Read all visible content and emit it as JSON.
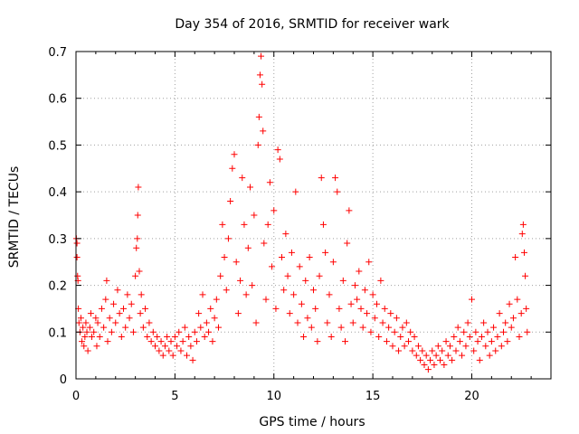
{
  "chart_data": {
    "type": "scatter",
    "title": "Day 354 of 2016, SRMTID for receiver wark",
    "xlabel": "GPS time / hours",
    "ylabel": "SRMTID / TECUs",
    "xlim": [
      0,
      24
    ],
    "ylim": [
      0,
      0.7
    ],
    "xticks": [
      0,
      5,
      10,
      15,
      20
    ],
    "yticks": [
      0,
      0.1,
      0.2,
      0.3,
      0.4,
      0.5,
      0.6,
      0.7
    ],
    "xtick_labels": [
      "0",
      "5",
      "10",
      "15",
      "20"
    ],
    "ytick_labels": [
      "0",
      "0.1",
      "0.2",
      "0.3",
      "0.4",
      "0.5",
      "0.6",
      "0.7"
    ],
    "grid": true,
    "marker": "+",
    "color": "#ff0000",
    "series": [
      {
        "name": "SRMTID",
        "points": [
          [
            0.02,
            0.3
          ],
          [
            0.05,
            0.29
          ],
          [
            0.05,
            0.26
          ],
          [
            0.08,
            0.22
          ],
          [
            0.1,
            0.21
          ],
          [
            0.12,
            0.15
          ],
          [
            0.15,
            0.12
          ],
          [
            0.2,
            0.1
          ],
          [
            0.25,
            0.13
          ],
          [
            0.3,
            0.08
          ],
          [
            0.35,
            0.11
          ],
          [
            0.4,
            0.07
          ],
          [
            0.45,
            0.09
          ],
          [
            0.5,
            0.12
          ],
          [
            0.55,
            0.1
          ],
          [
            0.6,
            0.06
          ],
          [
            0.7,
            0.11
          ],
          [
            0.75,
            0.14
          ],
          [
            0.8,
            0.09
          ],
          [
            0.9,
            0.1
          ],
          [
            1.0,
            0.13
          ],
          [
            1.05,
            0.07
          ],
          [
            1.1,
            0.12
          ],
          [
            1.2,
            0.09
          ],
          [
            1.3,
            0.15
          ],
          [
            1.4,
            0.11
          ],
          [
            1.5,
            0.17
          ],
          [
            1.55,
            0.21
          ],
          [
            1.6,
            0.08
          ],
          [
            1.7,
            0.13
          ],
          [
            1.8,
            0.1
          ],
          [
            1.9,
            0.16
          ],
          [
            2.0,
            0.12
          ],
          [
            2.1,
            0.19
          ],
          [
            2.2,
            0.14
          ],
          [
            2.3,
            0.09
          ],
          [
            2.4,
            0.15
          ],
          [
            2.5,
            0.11
          ],
          [
            2.6,
            0.18
          ],
          [
            2.7,
            0.13
          ],
          [
            2.8,
            0.16
          ],
          [
            2.9,
            0.1
          ],
          [
            3.0,
            0.22
          ],
          [
            3.05,
            0.28
          ],
          [
            3.1,
            0.3
          ],
          [
            3.12,
            0.35
          ],
          [
            3.15,
            0.41
          ],
          [
            3.2,
            0.23
          ],
          [
            3.25,
            0.14
          ],
          [
            3.3,
            0.18
          ],
          [
            3.4,
            0.11
          ],
          [
            3.5,
            0.15
          ],
          [
            3.6,
            0.09
          ],
          [
            3.7,
            0.12
          ],
          [
            3.8,
            0.08
          ],
          [
            3.9,
            0.1
          ],
          [
            4.0,
            0.07
          ],
          [
            4.1,
            0.09
          ],
          [
            4.2,
            0.06
          ],
          [
            4.3,
            0.08
          ],
          [
            4.4,
            0.05
          ],
          [
            4.5,
            0.07
          ],
          [
            4.6,
            0.09
          ],
          [
            4.7,
            0.06
          ],
          [
            4.8,
            0.08
          ],
          [
            4.9,
            0.05
          ],
          [
            5.0,
            0.09
          ],
          [
            5.1,
            0.07
          ],
          [
            5.2,
            0.1
          ],
          [
            5.3,
            0.06
          ],
          [
            5.4,
            0.08
          ],
          [
            5.5,
            0.11
          ],
          [
            5.6,
            0.05
          ],
          [
            5.7,
            0.09
          ],
          [
            5.8,
            0.07
          ],
          [
            5.9,
            0.04
          ],
          [
            6.0,
            0.1
          ],
          [
            6.1,
            0.08
          ],
          [
            6.2,
            0.14
          ],
          [
            6.3,
            0.11
          ],
          [
            6.4,
            0.18
          ],
          [
            6.5,
            0.09
          ],
          [
            6.6,
            0.12
          ],
          [
            6.7,
            0.1
          ],
          [
            6.8,
            0.15
          ],
          [
            6.9,
            0.08
          ],
          [
            7.0,
            0.13
          ],
          [
            7.1,
            0.17
          ],
          [
            7.2,
            0.11
          ],
          [
            7.3,
            0.22
          ],
          [
            7.4,
            0.33
          ],
          [
            7.5,
            0.26
          ],
          [
            7.6,
            0.19
          ],
          [
            7.7,
            0.3
          ],
          [
            7.8,
            0.38
          ],
          [
            7.9,
            0.45
          ],
          [
            8.0,
            0.48
          ],
          [
            8.1,
            0.25
          ],
          [
            8.2,
            0.14
          ],
          [
            8.3,
            0.21
          ],
          [
            8.4,
            0.43
          ],
          [
            8.5,
            0.33
          ],
          [
            8.6,
            0.18
          ],
          [
            8.7,
            0.28
          ],
          [
            8.8,
            0.41
          ],
          [
            8.9,
            0.2
          ],
          [
            9.0,
            0.35
          ],
          [
            9.1,
            0.12
          ],
          [
            9.2,
            0.5
          ],
          [
            9.25,
            0.56
          ],
          [
            9.3,
            0.65
          ],
          [
            9.35,
            0.69
          ],
          [
            9.4,
            0.63
          ],
          [
            9.45,
            0.53
          ],
          [
            9.5,
            0.29
          ],
          [
            9.6,
            0.17
          ],
          [
            9.7,
            0.33
          ],
          [
            9.8,
            0.42
          ],
          [
            9.9,
            0.24
          ],
          [
            10.0,
            0.36
          ],
          [
            10.1,
            0.15
          ],
          [
            10.2,
            0.49
          ],
          [
            10.3,
            0.47
          ],
          [
            10.4,
            0.26
          ],
          [
            10.5,
            0.19
          ],
          [
            10.6,
            0.31
          ],
          [
            10.7,
            0.22
          ],
          [
            10.8,
            0.14
          ],
          [
            10.9,
            0.27
          ],
          [
            11.0,
            0.18
          ],
          [
            11.1,
            0.4
          ],
          [
            11.2,
            0.12
          ],
          [
            11.3,
            0.24
          ],
          [
            11.4,
            0.16
          ],
          [
            11.5,
            0.09
          ],
          [
            11.6,
            0.21
          ],
          [
            11.7,
            0.13
          ],
          [
            11.8,
            0.26
          ],
          [
            11.9,
            0.11
          ],
          [
            12.0,
            0.19
          ],
          [
            12.1,
            0.15
          ],
          [
            12.2,
            0.08
          ],
          [
            12.3,
            0.22
          ],
          [
            12.4,
            0.43
          ],
          [
            12.5,
            0.33
          ],
          [
            12.6,
            0.27
          ],
          [
            12.7,
            0.12
          ],
          [
            12.8,
            0.18
          ],
          [
            12.9,
            0.09
          ],
          [
            13.0,
            0.25
          ],
          [
            13.1,
            0.43
          ],
          [
            13.2,
            0.4
          ],
          [
            13.3,
            0.15
          ],
          [
            13.4,
            0.11
          ],
          [
            13.5,
            0.21
          ],
          [
            13.6,
            0.08
          ],
          [
            13.7,
            0.29
          ],
          [
            13.8,
            0.36
          ],
          [
            13.9,
            0.16
          ],
          [
            14.0,
            0.12
          ],
          [
            14.1,
            0.2
          ],
          [
            14.2,
            0.17
          ],
          [
            14.3,
            0.23
          ],
          [
            14.4,
            0.15
          ],
          [
            14.5,
            0.11
          ],
          [
            14.6,
            0.19
          ],
          [
            14.7,
            0.14
          ],
          [
            14.8,
            0.25
          ],
          [
            14.9,
            0.1
          ],
          [
            15.0,
            0.18
          ],
          [
            15.1,
            0.13
          ],
          [
            15.2,
            0.16
          ],
          [
            15.3,
            0.09
          ],
          [
            15.4,
            0.21
          ],
          [
            15.5,
            0.12
          ],
          [
            15.6,
            0.15
          ],
          [
            15.7,
            0.08
          ],
          [
            15.8,
            0.11
          ],
          [
            15.9,
            0.14
          ],
          [
            16.0,
            0.07
          ],
          [
            16.1,
            0.1
          ],
          [
            16.2,
            0.13
          ],
          [
            16.3,
            0.06
          ],
          [
            16.4,
            0.09
          ],
          [
            16.5,
            0.11
          ],
          [
            16.6,
            0.07
          ],
          [
            16.7,
            0.12
          ],
          [
            16.8,
            0.08
          ],
          [
            16.9,
            0.1
          ],
          [
            17.0,
            0.06
          ],
          [
            17.1,
            0.09
          ],
          [
            17.2,
            0.05
          ],
          [
            17.3,
            0.07
          ],
          [
            17.4,
            0.04
          ],
          [
            17.5,
            0.06
          ],
          [
            17.6,
            0.03
          ],
          [
            17.7,
            0.05
          ],
          [
            17.8,
            0.02
          ],
          [
            17.9,
            0.04
          ],
          [
            18.0,
            0.06
          ],
          [
            18.1,
            0.03
          ],
          [
            18.2,
            0.05
          ],
          [
            18.3,
            0.07
          ],
          [
            18.4,
            0.04
          ],
          [
            18.5,
            0.06
          ],
          [
            18.6,
            0.03
          ],
          [
            18.7,
            0.08
          ],
          [
            18.8,
            0.05
          ],
          [
            18.9,
            0.07
          ],
          [
            19.0,
            0.04
          ],
          [
            19.1,
            0.09
          ],
          [
            19.2,
            0.06
          ],
          [
            19.3,
            0.11
          ],
          [
            19.4,
            0.08
          ],
          [
            19.5,
            0.05
          ],
          [
            19.6,
            0.1
          ],
          [
            19.7,
            0.07
          ],
          [
            19.8,
            0.12
          ],
          [
            19.9,
            0.09
          ],
          [
            20.0,
            0.17
          ],
          [
            20.1,
            0.06
          ],
          [
            20.2,
            0.1
          ],
          [
            20.3,
            0.08
          ],
          [
            20.4,
            0.04
          ],
          [
            20.5,
            0.09
          ],
          [
            20.6,
            0.12
          ],
          [
            20.7,
            0.07
          ],
          [
            20.8,
            0.1
          ],
          [
            20.9,
            0.05
          ],
          [
            21.0,
            0.08
          ],
          [
            21.1,
            0.11
          ],
          [
            21.2,
            0.06
          ],
          [
            21.3,
            0.09
          ],
          [
            21.4,
            0.14
          ],
          [
            21.5,
            0.07
          ],
          [
            21.6,
            0.1
          ],
          [
            21.7,
            0.12
          ],
          [
            21.8,
            0.08
          ],
          [
            21.9,
            0.16
          ],
          [
            22.0,
            0.11
          ],
          [
            22.1,
            0.13
          ],
          [
            22.2,
            0.26
          ],
          [
            22.3,
            0.17
          ],
          [
            22.4,
            0.09
          ],
          [
            22.5,
            0.14
          ],
          [
            22.55,
            0.31
          ],
          [
            22.6,
            0.33
          ],
          [
            22.65,
            0.27
          ],
          [
            22.7,
            0.22
          ],
          [
            22.75,
            0.15
          ],
          [
            22.8,
            0.1
          ]
        ]
      }
    ]
  }
}
